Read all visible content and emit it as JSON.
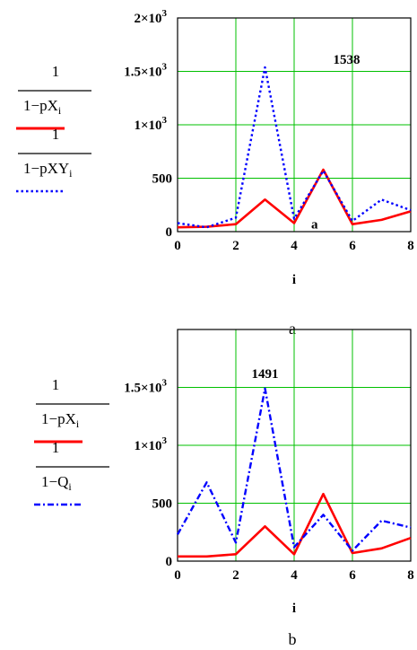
{
  "chart_data": [
    {
      "type": "line",
      "caption": "a",
      "xlabel": "i",
      "x": [
        0,
        1,
        2,
        3,
        4,
        5,
        6,
        7,
        8
      ],
      "xticks": [
        "0",
        "2",
        "4",
        "6",
        "8"
      ],
      "yticks": [
        {
          "value": 0,
          "base": "0",
          "exp": ""
        },
        {
          "value": 500,
          "base": "500",
          "exp": ""
        },
        {
          "value": 1000,
          "base": "1×10",
          "exp": "3"
        },
        {
          "value": 1500,
          "base": "1.5×10",
          "exp": "3"
        },
        {
          "value": 2000,
          "base": "2×10",
          "exp": "3"
        }
      ],
      "xlim": [
        0,
        8
      ],
      "ylim": [
        0,
        2000
      ],
      "grid": true,
      "annotations": [
        {
          "text": "1538",
          "x": 5.8,
          "y": 1570
        },
        {
          "text": "a",
          "x": 4.7,
          "y": 30
        }
      ],
      "series": [
        {
          "legend_num": "1",
          "legend_den": "1−pX",
          "legend_sub": "i",
          "color": "#ff0000",
          "style": "solid",
          "values": [
            40,
            45,
            70,
            300,
            80,
            580,
            70,
            110,
            190
          ]
        },
        {
          "legend_num": "1",
          "legend_den": "1−pXY",
          "legend_sub": "i",
          "color": "#0000ff",
          "style": "dotted",
          "values": [
            80,
            40,
            130,
            1538,
            120,
            570,
            100,
            300,
            200
          ]
        }
      ]
    },
    {
      "type": "line",
      "caption": "b",
      "xlabel": "i",
      "x": [
        0,
        1,
        2,
        3,
        4,
        5,
        6,
        7,
        8
      ],
      "xticks": [
        "0",
        "2",
        "4",
        "6",
        "8"
      ],
      "yticks": [
        {
          "value": 0,
          "base": "0",
          "exp": ""
        },
        {
          "value": 500,
          "base": "500",
          "exp": ""
        },
        {
          "value": 1000,
          "base": "1×10",
          "exp": "3"
        },
        {
          "value": 1500,
          "base": "1.5×10",
          "exp": "3"
        }
      ],
      "xlim": [
        0,
        8
      ],
      "ylim": [
        0,
        2000
      ],
      "grid": true,
      "annotations": [
        {
          "text": "1491",
          "x": 3.0,
          "y": 1580
        }
      ],
      "series": [
        {
          "legend_num": "1",
          "legend_den": "1−pX",
          "legend_sub": "i",
          "color": "#ff0000",
          "style": "solid",
          "values": [
            40,
            40,
            60,
            300,
            60,
            580,
            70,
            110,
            200
          ]
        },
        {
          "legend_num": "1",
          "legend_den": "1−Q",
          "legend_sub": "i",
          "color": "#0000ff",
          "style": "dashdot",
          "values": [
            230,
            680,
            160,
            1491,
            120,
            400,
            90,
            350,
            290
          ]
        }
      ]
    }
  ]
}
